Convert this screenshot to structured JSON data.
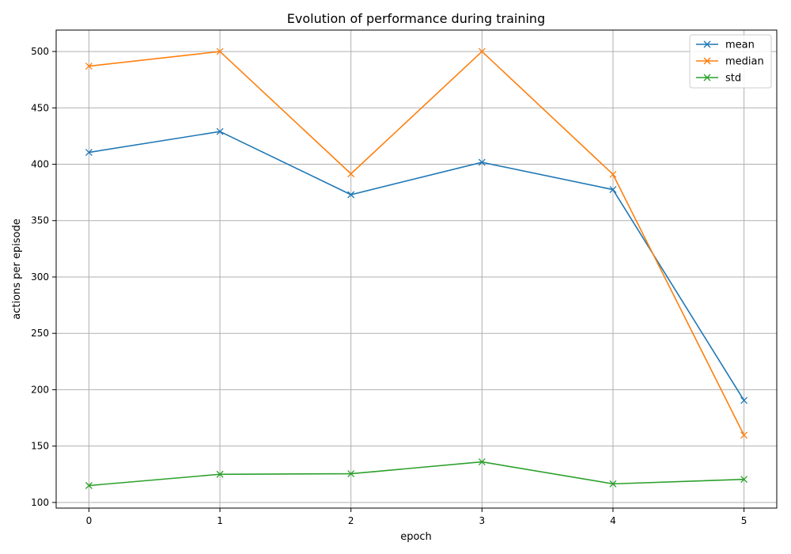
{
  "chart_data": {
    "type": "line",
    "title": "Evolution of performance during training",
    "xlabel": "epoch",
    "ylabel": "actions per episode",
    "x": [
      0,
      1,
      2,
      3,
      4,
      5
    ],
    "xlim": [
      -0.25,
      5.25
    ],
    "ylim": [
      95,
      519
    ],
    "xticks": [
      0,
      1,
      2,
      3,
      4,
      5
    ],
    "yticks": [
      100,
      150,
      200,
      250,
      300,
      350,
      400,
      450,
      500
    ],
    "grid": true,
    "legend_position": "top-right",
    "marker": "x",
    "series": [
      {
        "name": "mean",
        "color": "#1f77b4",
        "values": [
          410.5,
          429.0,
          373.0,
          401.7,
          377.5,
          190.5
        ]
      },
      {
        "name": "median",
        "color": "#ff7f0e",
        "values": [
          487.0,
          500.0,
          391.5,
          500.0,
          391.0,
          159.7
        ]
      },
      {
        "name": "std",
        "color": "#2ca02c",
        "values": [
          115.0,
          125.0,
          125.5,
          136.0,
          116.5,
          120.5
        ]
      }
    ]
  }
}
